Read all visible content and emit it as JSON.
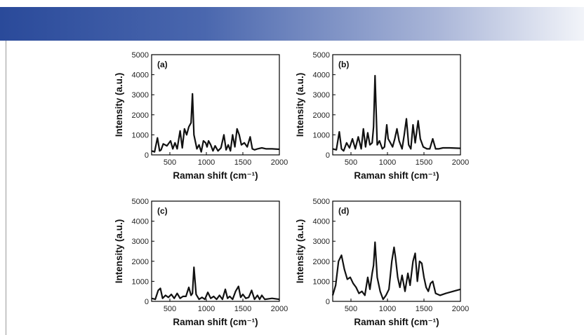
{
  "colors": {
    "banner_start": "#2a4a9a",
    "banner_end": "#f2f4f9",
    "trace": "#111111"
  },
  "chart_data": [
    {
      "type": "line",
      "panel_label": "(a)",
      "xlabel": "Raman shift (cm⁻¹)",
      "ylabel": "Intensity (a.u.)",
      "xlim": [
        250,
        2000
      ],
      "ylim": [
        0,
        5000
      ],
      "xticks": [
        500,
        1000,
        1500,
        2000
      ],
      "yticks": [
        0,
        1000,
        2000,
        3000,
        4000,
        5000
      ],
      "grid": false,
      "x": [
        250,
        290,
        330,
        360,
        380,
        410,
        460,
        510,
        540,
        570,
        600,
        640,
        670,
        700,
        730,
        760,
        790,
        810,
        830,
        850,
        870,
        900,
        930,
        960,
        990,
        1010,
        1030,
        1060,
        1090,
        1120,
        1160,
        1200,
        1240,
        1270,
        1300,
        1330,
        1360,
        1390,
        1420,
        1450,
        1480,
        1520,
        1560,
        1600,
        1630,
        1660,
        1700,
        1760,
        1820,
        1900,
        2000
      ],
      "y": [
        200,
        150,
        850,
        200,
        250,
        550,
        450,
        700,
        300,
        600,
        300,
        1200,
        350,
        1300,
        1000,
        1400,
        1600,
        3050,
        1000,
        650,
        300,
        500,
        150,
        700,
        600,
        400,
        700,
        500,
        200,
        450,
        200,
        350,
        1000,
        250,
        500,
        200,
        1000,
        400,
        1300,
        1000,
        500,
        600,
        400,
        900,
        300,
        250,
        300,
        350,
        300,
        300,
        280
      ]
    },
    {
      "type": "line",
      "panel_label": "(b)",
      "xlabel": "Raman shift (cm⁻¹)",
      "ylabel": "Intensity (a.u.)",
      "xlim": [
        250,
        2000
      ],
      "ylim": [
        0,
        5000
      ],
      "xticks": [
        500,
        1000,
        1500,
        2000
      ],
      "yticks": [
        0,
        1000,
        2000,
        3000,
        4000,
        5000
      ],
      "grid": false,
      "x": [
        250,
        300,
        340,
        370,
        400,
        440,
        480,
        520,
        560,
        600,
        640,
        670,
        700,
        730,
        760,
        790,
        810,
        830,
        860,
        890,
        930,
        960,
        990,
        1010,
        1040,
        1070,
        1100,
        1130,
        1160,
        1200,
        1230,
        1260,
        1290,
        1320,
        1350,
        1380,
        1420,
        1450,
        1490,
        1540,
        1580,
        1620,
        1660,
        1700,
        1760,
        1850,
        2000
      ],
      "y": [
        300,
        250,
        1150,
        300,
        200,
        600,
        350,
        800,
        300,
        900,
        300,
        1300,
        400,
        1100,
        500,
        600,
        1400,
        3950,
        500,
        700,
        300,
        400,
        1500,
        800,
        600,
        400,
        800,
        1300,
        700,
        300,
        1000,
        1800,
        500,
        300,
        1500,
        600,
        1700,
        800,
        400,
        300,
        300,
        800,
        300,
        300,
        350,
        350,
        330
      ]
    },
    {
      "type": "line",
      "panel_label": "(c)",
      "xlabel": "Raman shift (cm⁻¹)",
      "ylabel": "Intensity (a.u.)",
      "xlim": [
        250,
        2000
      ],
      "ylim": [
        0,
        5000
      ],
      "xticks": [
        500,
        1000,
        1500,
        2000
      ],
      "yticks": [
        0,
        1000,
        2000,
        3000,
        4000,
        5000
      ],
      "grid": false,
      "x": [
        250,
        300,
        340,
        370,
        400,
        440,
        480,
        520,
        560,
        600,
        640,
        680,
        720,
        760,
        790,
        810,
        830,
        860,
        900,
        940,
        980,
        1020,
        1060,
        1100,
        1140,
        1180,
        1220,
        1260,
        1290,
        1320,
        1360,
        1400,
        1440,
        1470,
        1500,
        1540,
        1580,
        1620,
        1660,
        1700,
        1730,
        1760,
        1800,
        1900,
        2000
      ],
      "y": [
        150,
        100,
        550,
        650,
        150,
        300,
        200,
        350,
        150,
        400,
        150,
        250,
        250,
        700,
        300,
        400,
        1700,
        350,
        100,
        200,
        100,
        450,
        150,
        250,
        100,
        300,
        100,
        600,
        150,
        250,
        100,
        500,
        750,
        200,
        350,
        150,
        200,
        550,
        100,
        300,
        100,
        300,
        100,
        150,
        100
      ]
    },
    {
      "type": "line",
      "panel_label": "(d)",
      "xlabel": "Raman shift (cm⁻¹)",
      "ylabel": "Intensity (a.u.)",
      "xlim": [
        250,
        2000
      ],
      "ylim": [
        0,
        5000
      ],
      "xticks": [
        500,
        1000,
        1500,
        2000
      ],
      "yticks": [
        0,
        1000,
        2000,
        3000,
        4000,
        5000
      ],
      "grid": false,
      "x": [
        250,
        290,
        330,
        370,
        410,
        450,
        490,
        530,
        570,
        610,
        650,
        690,
        730,
        760,
        790,
        810,
        830,
        860,
        900,
        940,
        980,
        1020,
        1060,
        1090,
        1110,
        1140,
        1170,
        1200,
        1240,
        1280,
        1310,
        1350,
        1380,
        1410,
        1440,
        1470,
        1500,
        1530,
        1560,
        1590,
        1620,
        1660,
        1720,
        1800,
        1900,
        2000
      ],
      "y": [
        300,
        800,
        2000,
        2300,
        1600,
        1100,
        1200,
        900,
        700,
        400,
        500,
        300,
        1200,
        600,
        1400,
        1800,
        2950,
        1200,
        500,
        100,
        300,
        600,
        2000,
        2700,
        2200,
        1200,
        700,
        1300,
        500,
        1400,
        800,
        2000,
        2400,
        1000,
        2000,
        1900,
        1200,
        700,
        500,
        900,
        1000,
        400,
        300,
        400,
        500,
        600
      ]
    }
  ]
}
